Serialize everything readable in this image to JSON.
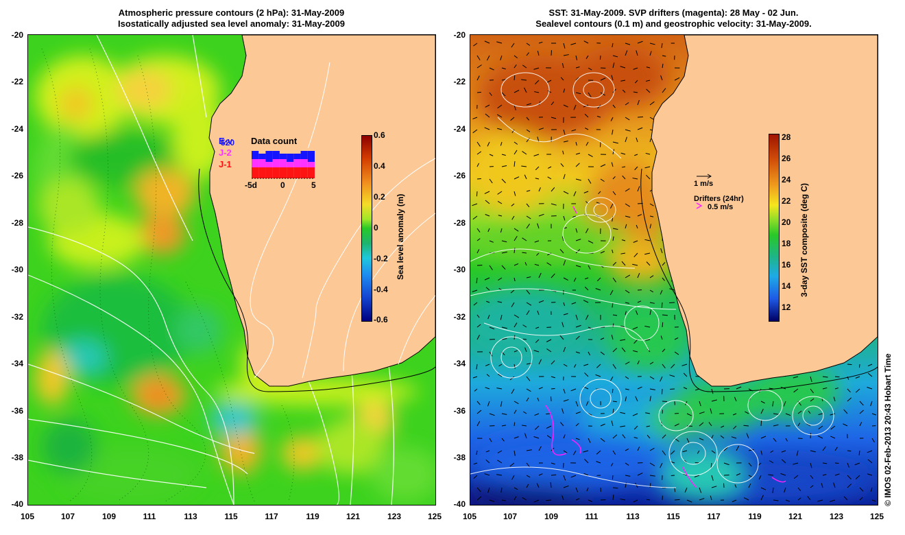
{
  "left_panel": {
    "title_line1": "Atmospheric pressure contours (2 hPa): 31-May-2009",
    "title_line2": "Isostatically adjusted sea level anomaly: 31-May-2009",
    "colorbar_label": "Sea level anomaly (m)",
    "colorbar_ticks": [
      "0.6",
      "0.4",
      "0.2",
      "0",
      "-0.2",
      "-0.4",
      "-0.6"
    ],
    "inset": {
      "title": "Data count",
      "series_labels": [
        "E-v",
        "J-2",
        "J-1"
      ],
      "count_label": "520",
      "x_ticks": [
        "-5d",
        "0",
        "5"
      ],
      "series_colors": [
        "#1414ff",
        "#ff32ff",
        "#ff1414"
      ],
      "bar_values": {
        "E-v": [
          3,
          2,
          4,
          3,
          2,
          3,
          2,
          3,
          4
        ],
        "J-2": [
          3,
          3,
          2,
          3,
          3,
          2,
          3,
          3,
          2
        ],
        "J-1": [
          4,
          4,
          4,
          4,
          4,
          4,
          4,
          4,
          4
        ]
      }
    }
  },
  "right_panel": {
    "title_line1": "SST: 31-May-2009. SVP drifters (magenta): 28 May - 02 Jun.",
    "title_line2": "Sealevel contours (0.1 m) and geostrophic velocity: 31-May-2009.",
    "colorbar_label": "3-day SST composite (deg C)",
    "colorbar_ticks": [
      "28",
      "26",
      "24",
      "22",
      "20",
      "18",
      "16",
      "14",
      "12"
    ],
    "velocity_scale_label": "1 m/s",
    "drifters_label": "Drifters (24hr)",
    "drifter_speed_label": "0.5 m/s",
    "drifter_color": "#ff20ff"
  },
  "axes": {
    "y_ticks": [
      "-20",
      "-22",
      "-24",
      "-26",
      "-28",
      "-30",
      "-32",
      "-34",
      "-36",
      "-38",
      "-40"
    ],
    "x_ticks": [
      "105",
      "107",
      "109",
      "111",
      "113",
      "115",
      "117",
      "119",
      "121",
      "123",
      "125"
    ]
  },
  "copyright": "© IMOS 02-Feb-2013 20:43 Hobart Time",
  "colors": {
    "land": "#fcc896",
    "coast": "#000000"
  }
}
